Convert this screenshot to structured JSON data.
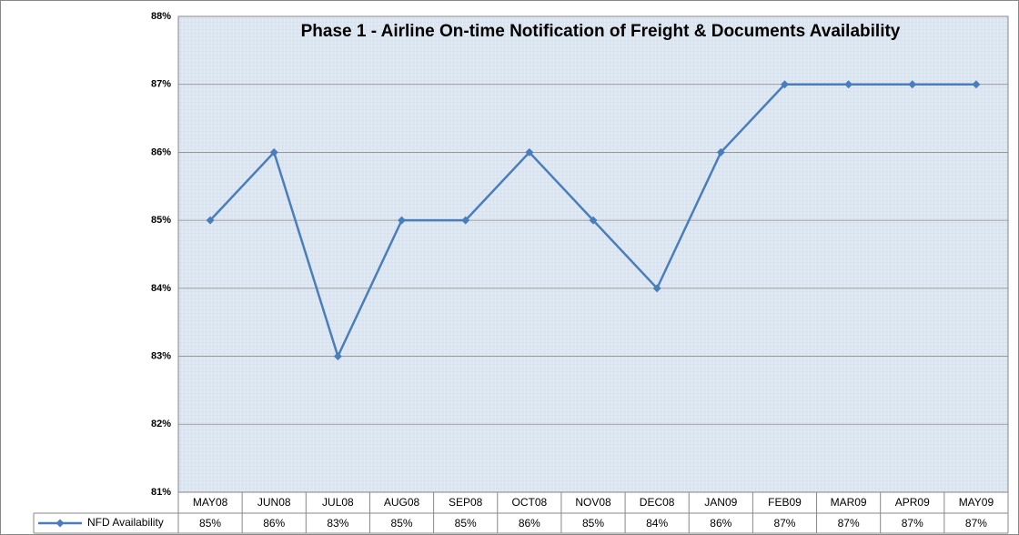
{
  "chart_data": {
    "type": "line",
    "title": "Phase 1 - Airline On-time Notification of Freight & Documents Availability",
    "categories": [
      "MAY08",
      "JUN08",
      "JUL08",
      "AUG08",
      "SEP08",
      "OCT08",
      "NOV08",
      "DEC08",
      "JAN09",
      "FEB09",
      "MAR09",
      "APR09",
      "MAY09"
    ],
    "series": [
      {
        "name": "NFD Availability",
        "color": "#4a7ebb",
        "values": [
          85,
          86,
          83,
          85,
          85,
          86,
          85,
          84,
          86,
          87,
          87,
          87,
          87
        ],
        "value_labels": [
          "85%",
          "86%",
          "83%",
          "85%",
          "85%",
          "86%",
          "85%",
          "84%",
          "86%",
          "87%",
          "87%",
          "87%",
          "87%"
        ]
      }
    ],
    "ylim": [
      81,
      88
    ],
    "yticks": [
      {
        "value": 81,
        "label": "81%"
      },
      {
        "value": 82,
        "label": "82%"
      },
      {
        "value": 83,
        "label": "83%"
      },
      {
        "value": 84,
        "label": "84%"
      },
      {
        "value": 85,
        "label": "85%"
      },
      {
        "value": 86,
        "label": "86%"
      },
      {
        "value": 87,
        "label": "87%"
      },
      {
        "value": 88,
        "label": "88%"
      }
    ],
    "grid": true
  }
}
